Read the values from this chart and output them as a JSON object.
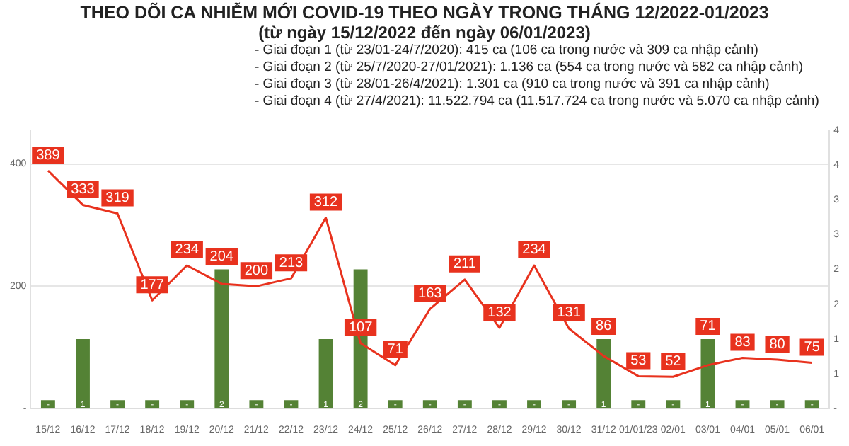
{
  "chart_data": {
    "type": "bar",
    "title": "THEO DÕI CA NHIỄM MỚI COVID-19 THEO NGÀY TRONG THÁNG 12/2022-01/2023",
    "subtitle": "(từ ngày 15/12/2022 đến ngày 06/01/2023)",
    "annotations": [
      "- Giai đoạn 1 (từ 23/01-24/7/2020): 415 ca (106 ca trong nước và 309 ca nhập cảnh)",
      "- Giai đoạn 2 (từ 25/7/2020-27/01/2021): 1.136 ca (554 ca trong nước và 582 ca nhập cảnh)",
      "- Giai đoạn 3 (từ 28/01-26/4/2021): 1.301 ca (910 ca trong nước và 391 ca nhập cảnh)",
      "- Giai đoạn 4 (từ 27/4/2021): 11.522.794 ca (11.517.724 ca trong nước và 5.070 ca nhập cảnh)"
    ],
    "categories": [
      "15/12",
      "16/12",
      "17/12",
      "18/12",
      "19/12",
      "20/12",
      "21/12",
      "22/12",
      "23/12",
      "24/12",
      "25/12",
      "26/12",
      "27/12",
      "28/12",
      "29/12",
      "30/12",
      "31/12",
      "01/01/23",
      "02/01",
      "03/01",
      "04/01",
      "05/01",
      "06/01"
    ],
    "series": [
      {
        "type": "line",
        "color": "#e8321e",
        "values": [
          389,
          333,
          319,
          177,
          234,
          204,
          200,
          213,
          312,
          107,
          71,
          163,
          211,
          132,
          234,
          131,
          86,
          53,
          52,
          71,
          83,
          80,
          75
        ],
        "value_labels": [
          "389",
          "333",
          "319",
          "177",
          "234",
          "204",
          "200",
          "213",
          "312",
          "107",
          "71",
          "163",
          "211",
          "132",
          "234",
          "131",
          "86",
          "53",
          "52",
          "71",
          "83",
          "80",
          "75"
        ]
      },
      {
        "axis": "y2",
        "color": "#548235",
        "values": [
          0,
          1,
          0,
          0,
          0,
          2,
          0,
          0,
          1,
          2,
          0,
          0,
          0,
          0,
          0,
          0,
          1,
          0,
          0,
          1,
          0,
          0,
          0
        ],
        "value_labels": [
          "-",
          "1",
          "-",
          "-",
          "-",
          "2",
          "-",
          "-",
          "1",
          "2",
          "-",
          "-",
          "-",
          "-",
          "-",
          "-",
          "1",
          "-",
          "-",
          "1",
          "-",
          "-",
          "-"
        ]
      }
    ],
    "ylim": [
      0,
      455
    ],
    "yticks": [
      {
        "value": 0,
        "label": "-"
      },
      200,
      400
    ],
    "y2lim": [
      0,
      4
    ],
    "y2ticks": [
      {
        "value": 0,
        "label": "-"
      },
      {
        "value": 0.5,
        "label": "1"
      },
      {
        "value": 1,
        "label": "1"
      },
      {
        "value": 1.5,
        "label": "2"
      },
      {
        "value": 2,
        "label": "2"
      },
      {
        "value": 2.5,
        "label": "3"
      },
      {
        "value": 3,
        "label": "3"
      },
      {
        "value": 3.5,
        "label": "4"
      },
      {
        "value": 4,
        "label": "4"
      }
    ],
    "grid": "y",
    "legend": false
  }
}
